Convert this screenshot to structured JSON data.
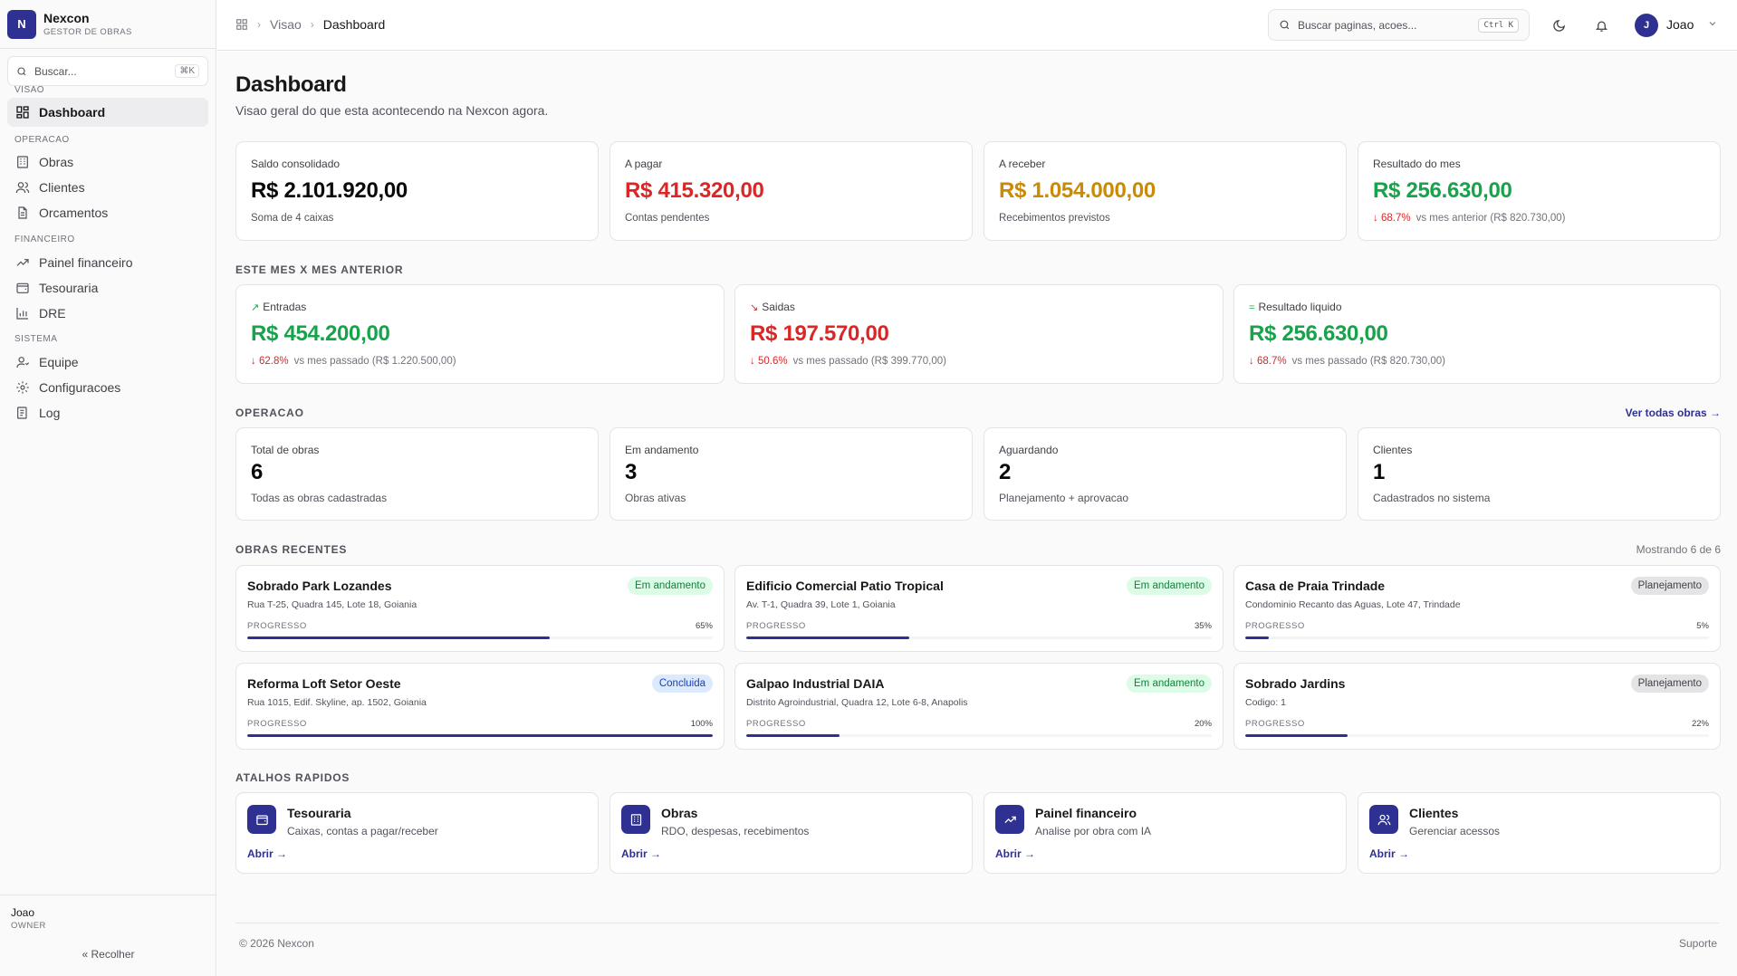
{
  "brand": {
    "logo": "N",
    "name": "Nexcon",
    "subtitle": "GESTOR DE OBRAS"
  },
  "sidebar": {
    "search_placeholder": "Buscar...",
    "search_kbd": "⌘K",
    "sections": {
      "visao": "VISAO",
      "operacao": "OPERACAO",
      "financeiro": "FINANCEIRO",
      "sistema": "SISTEMA"
    },
    "items": {
      "dashboard": "Dashboard",
      "obras": "Obras",
      "clientes": "Clientes",
      "orcamentos": "Orcamentos",
      "painel": "Painel financeiro",
      "tesouraria": "Tesouraria",
      "dre": "DRE",
      "equipe": "Equipe",
      "config": "Configuracoes",
      "log": "Log"
    },
    "user": "Joao",
    "role": "OWNER",
    "collapse": "Recolher"
  },
  "topbar": {
    "crumb_root": "Visao",
    "crumb_current": "Dashboard",
    "search_placeholder": "Buscar paginas, acoes...",
    "search_kbd": "Ctrl K",
    "avatar": "J",
    "user": "Joao"
  },
  "page": {
    "title": "Dashboard",
    "subtitle": "Visao geral do que esta acontecendo na Nexcon agora."
  },
  "summary": [
    {
      "label": "Saldo consolidado",
      "value": "R$ 2.101.920,00",
      "sub": "Soma de 4 caixas",
      "color": "#09090b"
    },
    {
      "label": "A pagar",
      "value": "R$ 415.320,00",
      "sub": "Contas pendentes",
      "color": "#dc2626"
    },
    {
      "label": "A receber",
      "value": "R$ 1.054.000,00",
      "sub": "Recebimentos previstos",
      "color": "#ca8a04"
    },
    {
      "label": "Resultado do mes",
      "value": "R$ 256.630,00",
      "delta": "68.7%",
      "sub": "vs mes anterior (R$ 820.730,00)",
      "color": "#16a34a"
    }
  ],
  "comparison": {
    "label": "ESTE MES X MES ANTERIOR",
    "items": [
      {
        "label": "Entradas",
        "value": "R$ 454.200,00",
        "delta": "62.8%",
        "sub": "vs mes passado (R$ 1.220.500,00)"
      },
      {
        "label": "Saidas",
        "value": "R$ 197.570,00",
        "delta": "50.6%",
        "sub": "vs mes passado (R$ 399.770,00)"
      },
      {
        "label": "Resultado liquido",
        "value": "R$ 256.630,00",
        "delta": "68.7%",
        "sub": "vs mes passado (R$ 820.730,00)"
      }
    ]
  },
  "operacao": {
    "label": "OPERACAO",
    "link": "Ver todas obras →",
    "items": [
      {
        "label": "Total de obras",
        "value": "6",
        "sub": "Todas as obras cadastradas"
      },
      {
        "label": "Em andamento",
        "value": "3",
        "sub": "Obras ativas"
      },
      {
        "label": "Aguardando",
        "value": "2",
        "sub": "Planejamento + aprovacao"
      },
      {
        "label": "Clientes",
        "value": "1",
        "sub": "Cadastrados no sistema"
      }
    ]
  },
  "obras": {
    "label": "OBRAS RECENTES",
    "count": "Mostrando 6 de 6",
    "progress_label": "PROGRESSO",
    "items": [
      {
        "name": "Sobrado Park Lozandes",
        "address": "Rua T-25, Quadra 145, Lote 18, Goiania",
        "status": "Em andamento",
        "status_type": "green",
        "progress": 65,
        "progress_text": "65%"
      },
      {
        "name": "Edificio Comercial Patio Tropical",
        "address": "Av. T-1, Quadra 39, Lote 1, Goiania",
        "status": "Em andamento",
        "status_type": "green",
        "progress": 35,
        "progress_text": "35%"
      },
      {
        "name": "Casa de Praia Trindade",
        "address": "Condominio Recanto das Aguas, Lote 47, Trindade",
        "status": "Planejamento",
        "status_type": "gray",
        "progress": 5,
        "progress_text": "5%"
      },
      {
        "name": "Reforma Loft Setor Oeste",
        "address": "Rua 1015, Edif. Skyline, ap. 1502, Goiania",
        "status": "Concluida",
        "status_type": "blue",
        "progress": 100,
        "progress_text": "100%"
      },
      {
        "name": "Galpao Industrial DAIA",
        "address": "Distrito Agroindustrial, Quadra 12, Lote 6-8, Anapolis",
        "status": "Em andamento",
        "status_type": "green",
        "progress": 20,
        "progress_text": "20%"
      },
      {
        "name": "Sobrado Jardins",
        "address": "Codigo: 1",
        "status": "Planejamento",
        "status_type": "gray",
        "progress": 22,
        "progress_text": "22%"
      }
    ]
  },
  "shortcuts": {
    "label": "ATALHOS RAPIDOS",
    "open": "Abrir →",
    "items": [
      {
        "title": "Tesouraria",
        "sub": "Caixas, contas a pagar/receber",
        "icon": "wallet-icon"
      },
      {
        "title": "Obras",
        "sub": "RDO, despesas, recebimentos",
        "icon": "building-icon"
      },
      {
        "title": "Painel financeiro",
        "sub": "Analise por obra com IA",
        "icon": "trending-up-icon"
      },
      {
        "title": "Clientes",
        "sub": "Gerenciar acessos",
        "icon": "users-icon"
      }
    ]
  },
  "footer": {
    "copyright": "© 2026 Nexcon",
    "support": "Suporte"
  },
  "colors": {
    "brand": "#2e3192",
    "positive": "#16a34a",
    "negative": "#dc2626",
    "warning": "#ca8a04"
  }
}
